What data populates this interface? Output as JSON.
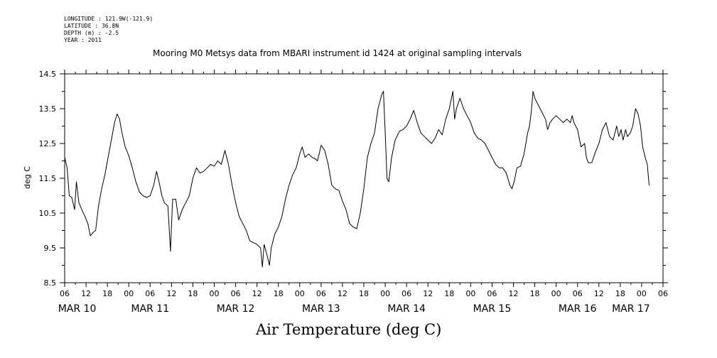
{
  "header": {
    "lines": [
      "LONGITUDE : 121.9W(-121.9)",
      "LATITUDE : 36.8N",
      "DEPTH (m) : -2.5",
      "YEAR : 2011"
    ],
    "title": "Mooring M0 Metsys data from MBARI instrument id 1424 at original sampling intervals"
  },
  "chart_data": {
    "type": "line",
    "title": "Mooring M0 Metsys data from MBARI instrument id 1424 at original sampling intervals",
    "xlabel": "Air Temperature (deg C)",
    "ylabel": "deg C",
    "ylim": [
      8.5,
      14.5
    ],
    "y_ticks": [
      "14.5",
      "13.5",
      "12.5",
      "11.5",
      "10.5",
      "9.5",
      "8.5"
    ],
    "x_unit": "hours since MAR 10 00",
    "xlim": [
      -18,
      150
    ],
    "x_hour_ticks": [
      {
        "t": -18,
        "label": "06"
      },
      {
        "t": -12,
        "label": "12"
      },
      {
        "t": -6,
        "label": "18"
      },
      {
        "t": 0,
        "label": "00"
      },
      {
        "t": 6,
        "label": "06"
      },
      {
        "t": 12,
        "label": "12"
      },
      {
        "t": 18,
        "label": "18"
      },
      {
        "t": 24,
        "label": "00"
      },
      {
        "t": 30,
        "label": "06"
      },
      {
        "t": 36,
        "label": "12"
      },
      {
        "t": 42,
        "label": "18"
      },
      {
        "t": 48,
        "label": "00"
      },
      {
        "t": 54,
        "label": "06"
      },
      {
        "t": 60,
        "label": "12"
      },
      {
        "t": 66,
        "label": "18"
      },
      {
        "t": 72,
        "label": "00"
      },
      {
        "t": 78,
        "label": "06"
      },
      {
        "t": 84,
        "label": "12"
      },
      {
        "t": 90,
        "label": "18"
      },
      {
        "t": 96,
        "label": "00"
      },
      {
        "t": 102,
        "label": "06"
      },
      {
        "t": 108,
        "label": "12"
      },
      {
        "t": 114,
        "label": "18"
      },
      {
        "t": 120,
        "label": "00"
      },
      {
        "t": 126,
        "label": "06"
      },
      {
        "t": 132,
        "label": "12"
      },
      {
        "t": 138,
        "label": "18"
      },
      {
        "t": 144,
        "label": "00"
      },
      {
        "t": 150,
        "label": "06"
      }
    ],
    "day_labels": [
      {
        "t": -14.5,
        "label": "MAR 10"
      },
      {
        "t": 6,
        "label": "MAR 11"
      },
      {
        "t": 30,
        "label": "MAR 12"
      },
      {
        "t": 54,
        "label": "MAR 13"
      },
      {
        "t": 78,
        "label": "MAR 14"
      },
      {
        "t": 102,
        "label": "MAR 15"
      },
      {
        "t": 126,
        "label": "MAR 16"
      },
      {
        "t": 141,
        "label": "MAR 17"
      }
    ],
    "series": [
      {
        "color": "#000000",
        "points": [
          [
            -18,
            12.1
          ],
          [
            -17.3,
            11.8
          ],
          [
            -16.7,
            11.0
          ],
          [
            -16,
            10.95
          ],
          [
            -15.2,
            10.6
          ],
          [
            -14.7,
            11.4
          ],
          [
            -14,
            10.8
          ],
          [
            -13.2,
            10.6
          ],
          [
            -12.3,
            10.4
          ],
          [
            -11.5,
            10.2
          ],
          [
            -10.8,
            9.85
          ],
          [
            -10,
            9.95
          ],
          [
            -9.3,
            10.0
          ],
          [
            -8.5,
            10.7
          ],
          [
            -7.6,
            11.2
          ],
          [
            -6.7,
            11.6
          ],
          [
            -5.8,
            12.1
          ],
          [
            -4.9,
            12.6
          ],
          [
            -4.0,
            13.1
          ],
          [
            -3.3,
            13.35
          ],
          [
            -2.6,
            13.2
          ],
          [
            -1.9,
            12.8
          ],
          [
            -1.0,
            12.4
          ],
          [
            0,
            12.15
          ],
          [
            1.0,
            11.8
          ],
          [
            2.0,
            11.4
          ],
          [
            3.0,
            11.1
          ],
          [
            4.0,
            11.0
          ],
          [
            5.0,
            10.95
          ],
          [
            6.0,
            11.0
          ],
          [
            7.0,
            11.3
          ],
          [
            7.8,
            11.7
          ],
          [
            8.5,
            11.4
          ],
          [
            9.3,
            11.0
          ],
          [
            10.0,
            10.8
          ],
          [
            11.0,
            10.7
          ],
          [
            11.7,
            9.4
          ],
          [
            12.3,
            10.9
          ],
          [
            13.2,
            10.9
          ],
          [
            14.0,
            10.3
          ],
          [
            15.0,
            10.6
          ],
          [
            16.0,
            10.8
          ],
          [
            17.0,
            11.0
          ],
          [
            18.0,
            11.5
          ],
          [
            19.0,
            11.8
          ],
          [
            20.0,
            11.65
          ],
          [
            21.0,
            11.7
          ],
          [
            22.0,
            11.8
          ],
          [
            23.0,
            11.9
          ],
          [
            24.0,
            11.85
          ],
          [
            25.0,
            12.0
          ],
          [
            26.0,
            11.9
          ],
          [
            27.0,
            12.3
          ],
          [
            28.0,
            11.9
          ],
          [
            29.0,
            11.3
          ],
          [
            30.0,
            10.8
          ],
          [
            31.0,
            10.4
          ],
          [
            32.0,
            10.2
          ],
          [
            33.0,
            10.0
          ],
          [
            34.0,
            9.7
          ],
          [
            35.0,
            9.65
          ],
          [
            36.0,
            9.6
          ],
          [
            37.0,
            9.5
          ],
          [
            37.5,
            8.95
          ],
          [
            38.0,
            9.6
          ],
          [
            38.8,
            9.3
          ],
          [
            39.5,
            9.0
          ],
          [
            40.0,
            9.5
          ],
          [
            41.0,
            9.9
          ],
          [
            42.0,
            10.1
          ],
          [
            43.0,
            10.4
          ],
          [
            44.0,
            10.9
          ],
          [
            45.0,
            11.3
          ],
          [
            46.0,
            11.6
          ],
          [
            47.0,
            11.8
          ],
          [
            48.0,
            12.2
          ],
          [
            48.7,
            12.4
          ],
          [
            49.5,
            12.1
          ],
          [
            50.5,
            12.2
          ],
          [
            51.5,
            12.1
          ],
          [
            52.5,
            12.05
          ],
          [
            53.0,
            12.0
          ],
          [
            54.0,
            12.45
          ],
          [
            55.0,
            12.3
          ],
          [
            56.0,
            11.9
          ],
          [
            57.0,
            11.3
          ],
          [
            58.0,
            11.2
          ],
          [
            59.0,
            11.15
          ],
          [
            60.0,
            10.85
          ],
          [
            61.0,
            10.6
          ],
          [
            62.0,
            10.2
          ],
          [
            63.0,
            10.1
          ],
          [
            64.0,
            10.05
          ],
          [
            65.0,
            10.5
          ],
          [
            66.0,
            11.2
          ],
          [
            67.0,
            12.1
          ],
          [
            68.0,
            12.5
          ],
          [
            69.0,
            12.8
          ],
          [
            70.0,
            13.5
          ],
          [
            71.0,
            13.9
          ],
          [
            71.5,
            14.0
          ],
          [
            72.0,
            12.8
          ],
          [
            72.5,
            11.5
          ],
          [
            73.0,
            11.4
          ],
          [
            73.8,
            12.1
          ],
          [
            74.8,
            12.6
          ],
          [
            76.0,
            12.85
          ],
          [
            77.0,
            12.9
          ],
          [
            78.0,
            13.0
          ],
          [
            79.0,
            13.2
          ],
          [
            80.0,
            13.45
          ],
          [
            81.0,
            13.1
          ],
          [
            82.0,
            12.8
          ],
          [
            83.0,
            12.7
          ],
          [
            84.0,
            12.6
          ],
          [
            85.0,
            12.5
          ],
          [
            86.0,
            12.65
          ],
          [
            87.0,
            12.9
          ],
          [
            88.0,
            12.75
          ],
          [
            89.0,
            13.2
          ],
          [
            90.0,
            13.5
          ],
          [
            91.0,
            14.0
          ],
          [
            91.5,
            13.2
          ],
          [
            92.0,
            13.5
          ],
          [
            93.0,
            13.8
          ],
          [
            94.0,
            13.5
          ],
          [
            95.0,
            13.3
          ],
          [
            96.0,
            13.1
          ],
          [
            97.0,
            12.8
          ],
          [
            98.0,
            12.65
          ],
          [
            99.0,
            12.6
          ],
          [
            100.0,
            12.5
          ],
          [
            101.0,
            12.3
          ],
          [
            102.0,
            12.1
          ],
          [
            103.0,
            11.9
          ],
          [
            104.0,
            11.8
          ],
          [
            105.0,
            11.8
          ],
          [
            106.0,
            11.65
          ],
          [
            107.0,
            11.3
          ],
          [
            107.6,
            11.2
          ],
          [
            108.2,
            11.4
          ],
          [
            109.0,
            11.8
          ],
          [
            110.0,
            11.85
          ],
          [
            111.0,
            12.2
          ],
          [
            112.0,
            12.8
          ],
          [
            112.5,
            13.0
          ],
          [
            113.0,
            13.4
          ],
          [
            113.5,
            14.0
          ],
          [
            114.0,
            13.8
          ],
          [
            115.0,
            13.6
          ],
          [
            116.0,
            13.4
          ],
          [
            117.0,
            13.2
          ],
          [
            117.6,
            12.9
          ],
          [
            118.3,
            13.1
          ],
          [
            119.0,
            13.2
          ],
          [
            120.0,
            13.3
          ],
          [
            121.0,
            13.2
          ],
          [
            122.0,
            13.1
          ],
          [
            123.0,
            13.2
          ],
          [
            124.0,
            13.1
          ],
          [
            124.5,
            13.3
          ],
          [
            125.0,
            13.1
          ],
          [
            126.0,
            12.9
          ],
          [
            127.0,
            12.4
          ],
          [
            128.0,
            12.5
          ],
          [
            128.5,
            12.1
          ],
          [
            129.0,
            11.95
          ],
          [
            130.0,
            11.95
          ],
          [
            131.0,
            12.25
          ],
          [
            132.0,
            12.5
          ],
          [
            133.0,
            12.9
          ],
          [
            134.0,
            13.1
          ],
          [
            135.0,
            12.7
          ],
          [
            136.0,
            12.6
          ],
          [
            137.0,
            13.0
          ],
          [
            137.6,
            12.7
          ],
          [
            138.2,
            12.9
          ],
          [
            138.8,
            12.6
          ],
          [
            139.5,
            12.9
          ],
          [
            140.0,
            12.7
          ],
          [
            140.8,
            12.8
          ],
          [
            141.5,
            13.0
          ],
          [
            142.3,
            13.5
          ],
          [
            143.0,
            13.35
          ],
          [
            143.7,
            13.0
          ],
          [
            144.3,
            12.4
          ],
          [
            145.0,
            12.1
          ],
          [
            145.6,
            11.9
          ],
          [
            146.1,
            11.3
          ]
        ]
      }
    ]
  }
}
